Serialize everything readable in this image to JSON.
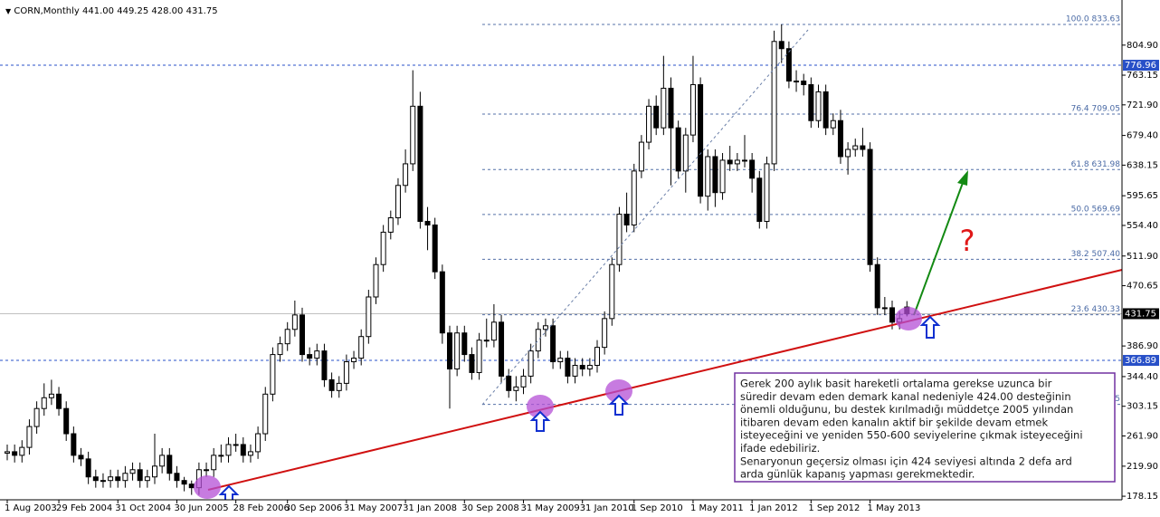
{
  "chart_data": {
    "type": "candlestick",
    "title": "CORN,Monthly",
    "last_bar": [
      {
        "value": 441,
        "label": "441.00"
      },
      {
        "value": 449.25,
        "label": "449.25"
      },
      {
        "value": 428,
        "label": "428.00"
      },
      {
        "value": 431.75,
        "label": "431.75"
      }
    ],
    "categories": [
      "1 Aug 2003",
      null,
      null,
      null,
      null,
      null,
      null,
      "29 Feb 2004",
      null,
      null,
      null,
      null,
      null,
      null,
      null,
      "31 Oct 2004",
      null,
      null,
      null,
      null,
      null,
      null,
      null,
      "30 Jun 2005",
      null,
      null,
      null,
      null,
      null,
      null,
      null,
      "28 Feb 2006",
      null,
      null,
      null,
      null,
      null,
      null,
      "30 Sep 2006",
      null,
      null,
      null,
      null,
      null,
      null,
      null,
      "31 May 2007",
      null,
      null,
      null,
      null,
      null,
      null,
      null,
      "31 Jan 2008",
      null,
      null,
      null,
      null,
      null,
      null,
      null,
      "30 Sep 2008",
      null,
      null,
      null,
      null,
      null,
      null,
      null,
      "31 May 2009",
      null,
      null,
      null,
      null,
      null,
      null,
      null,
      "31 Jan 2010",
      null,
      null,
      null,
      null,
      null,
      null,
      "1 Sep 2010",
      null,
      null,
      null,
      null,
      null,
      null,
      null,
      "1 May 2011",
      null,
      null,
      null,
      null,
      null,
      null,
      null,
      "1 Jan 2012",
      null,
      null,
      null,
      null,
      null,
      null,
      null,
      "1 Sep 2012",
      null,
      null,
      null,
      null,
      null,
      null,
      null,
      "1 May 2013",
      null,
      null,
      null,
      null,
      null
    ],
    "open": [
      238,
      240,
      235,
      246,
      275,
      300,
      315,
      320,
      300,
      265,
      235,
      230,
      205,
      200,
      200,
      205,
      200,
      210,
      215,
      200,
      205,
      220,
      235,
      210,
      200,
      195,
      190,
      215,
      215,
      235,
      235,
      250,
      250,
      235,
      240,
      265,
      320,
      375,
      390,
      410,
      430,
      375,
      370,
      380,
      340,
      325,
      335,
      365,
      370,
      400,
      455,
      500,
      545,
      565,
      610,
      640,
      720,
      560,
      555,
      490,
      405,
      355,
      405,
      375,
      350,
      395,
      395,
      420,
      345,
      325,
      330,
      345,
      380,
      410,
      415,
      365,
      370,
      345,
      360,
      355,
      360,
      385,
      425,
      500,
      570,
      555,
      630,
      670,
      720,
      690,
      745,
      690,
      630,
      680,
      750,
      595,
      650,
      600,
      645,
      640,
      645,
      645,
      620,
      560,
      640,
      810,
      800,
      755,
      755,
      750,
      700,
      740,
      690,
      700,
      650,
      660,
      665,
      660,
      500,
      440,
      440,
      420,
      441
    ],
    "high": [
      250,
      250,
      256,
      285,
      310,
      335,
      340,
      330,
      310,
      275,
      245,
      240,
      215,
      210,
      215,
      215,
      220,
      225,
      225,
      215,
      265,
      245,
      245,
      220,
      205,
      200,
      225,
      225,
      245,
      250,
      260,
      265,
      260,
      250,
      275,
      330,
      385,
      400,
      420,
      450,
      440,
      385,
      390,
      390,
      350,
      345,
      375,
      380,
      410,
      465,
      510,
      555,
      575,
      620,
      660,
      770,
      740,
      580,
      565,
      500,
      415,
      415,
      415,
      385,
      405,
      425,
      445,
      430,
      355,
      345,
      355,
      390,
      420,
      425,
      425,
      380,
      380,
      370,
      370,
      370,
      395,
      435,
      510,
      580,
      600,
      640,
      680,
      730,
      735,
      790,
      760,
      700,
      690,
      790,
      760,
      660,
      660,
      655,
      665,
      655,
      680,
      655,
      630,
      650,
      825,
      833.63,
      810,
      770,
      765,
      760,
      750,
      750,
      710,
      715,
      670,
      675,
      690,
      670,
      510,
      455,
      450,
      435,
      449.25
    ],
    "low": [
      228,
      225,
      225,
      236,
      265,
      290,
      305,
      290,
      255,
      225,
      220,
      195,
      190,
      190,
      190,
      190,
      190,
      200,
      190,
      190,
      195,
      210,
      200,
      190,
      185,
      180,
      180,
      205,
      205,
      225,
      225,
      240,
      225,
      225,
      230,
      255,
      310,
      365,
      380,
      400,
      365,
      360,
      360,
      330,
      315,
      315,
      325,
      355,
      360,
      390,
      445,
      490,
      535,
      555,
      600,
      630,
      550,
      520,
      480,
      390,
      300,
      345,
      365,
      340,
      340,
      385,
      385,
      335,
      315,
      310,
      320,
      335,
      370,
      400,
      355,
      355,
      335,
      335,
      345,
      345,
      350,
      375,
      415,
      490,
      545,
      545,
      620,
      660,
      680,
      680,
      610,
      620,
      600,
      670,
      585,
      575,
      580,
      590,
      630,
      630,
      635,
      600,
      550,
      550,
      630,
      780,
      745,
      740,
      735,
      690,
      690,
      680,
      680,
      640,
      625,
      650,
      650,
      490,
      430,
      430,
      410,
      410,
      428
    ],
    "close": [
      240,
      235,
      246,
      275,
      300,
      315,
      320,
      300,
      265,
      235,
      230,
      205,
      200,
      200,
      205,
      200,
      210,
      215,
      200,
      205,
      220,
      235,
      210,
      200,
      195,
      190,
      215,
      215,
      235,
      235,
      250,
      250,
      235,
      240,
      265,
      320,
      375,
      390,
      410,
      430,
      375,
      370,
      380,
      340,
      325,
      335,
      365,
      370,
      400,
      455,
      500,
      545,
      565,
      610,
      640,
      720,
      560,
      555,
      490,
      405,
      355,
      405,
      375,
      350,
      395,
      395,
      420,
      345,
      325,
      330,
      345,
      380,
      410,
      415,
      365,
      370,
      345,
      360,
      355,
      360,
      385,
      425,
      500,
      570,
      555,
      630,
      670,
      720,
      690,
      745,
      690,
      630,
      680,
      750,
      595,
      650,
      600,
      645,
      640,
      645,
      645,
      620,
      560,
      640,
      810,
      800,
      755,
      755,
      750,
      700,
      740,
      690,
      700,
      650,
      660,
      665,
      660,
      500,
      440,
      440,
      420,
      425,
      431.75
    ],
    "up_color": "#ffffff",
    "down_color": "#000000",
    "ylim": [
      173.2,
      861.3
    ],
    "yticks": [
      178.15,
      {
        "value": 219.9,
        "label": "219.90"
      },
      {
        "value": 261.9,
        "label": "261.90"
      },
      303.15,
      {
        "value": 344.4,
        "label": "344.40"
      },
      {
        "value": 386.9,
        "label": "386.90"
      },
      470.65,
      {
        "value": 511.9,
        "label": "511.90"
      },
      {
        "value": 554.4,
        "label": "554.40"
      },
      595.65,
      638.15,
      {
        "value": 679.4,
        "label": "679.40"
      },
      {
        "value": 721.9,
        "label": "721.90"
      },
      763.15,
      {
        "value": 804.9,
        "label": "804.90"
      }
    ],
    "fib_levels": [
      {
        "value": 833.63,
        "label": "100.0 833.63"
      },
      {
        "value": 709.05,
        "label": "76.4 709.05"
      },
      {
        "value": 631.98,
        "label": "61.8 631.98"
      },
      {
        "value": 569.69,
        "label": "50.0 569.69"
      },
      {
        "value": 507.4,
        "label": "38.2 507.40"
      },
      {
        "value": 430.33,
        "label": "23.6 430.33"
      },
      {
        "value": 305.75,
        "label": "0.0 305.75"
      }
    ],
    "levels": [
      {
        "value": 776.96,
        "label": "776.96",
        "color": "#2850c8"
      },
      {
        "value": 366.89,
        "label": "366.89",
        "color": "#2850c8"
      }
    ],
    "price_line": {
      "value": 431.75,
      "label": "431.75",
      "color": "#000000"
    },
    "annotation": "?",
    "note": [
      "Gerek 200 aylık basit hareketli ortalama gerekse uzunca bir",
      "süredir devam eden demark kanal nedeniyle 424.00 desteğinin",
      "önemli olduğunu, bu destek kırılmadığı müddetçe 2005 yılından",
      "itibaren devam eden kanalın aktif bir şekilde devam etmek",
      "isteyeceğini ve yeniden 550-600 seviyelerine çıkmak isteyeceğini",
      "ifade edebiliriz.",
      "Senaryonun geçersiz olması için 424 seviyesi altında 2 defa ard",
      "arda günlük kapanış yapması gerekmektedir."
    ]
  }
}
